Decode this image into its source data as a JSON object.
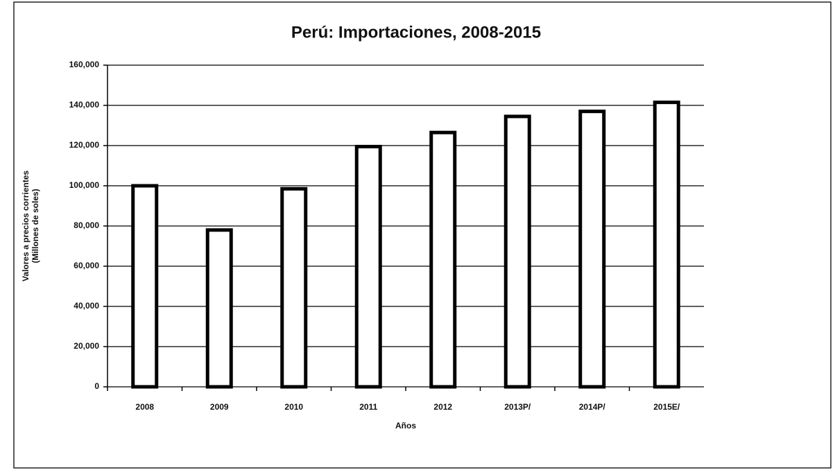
{
  "chart_data": {
    "type": "bar",
    "title": "Perú: Importaciones, 2008-2015",
    "x_label": "Años",
    "y_label": [
      "Valores a precios corrientes",
      "(Millones de soles)"
    ],
    "categories": [
      "2008",
      "2009",
      "2010",
      "2011",
      "2012",
      "2013P/",
      "2014P/",
      "2015E/"
    ],
    "values": [
      100000,
      78000,
      98500,
      119500,
      126500,
      134500,
      137000,
      141500
    ],
    "color": "#ffffff",
    "edge_color": "#000000",
    "ylim": [
      0,
      160000
    ],
    "yticks": [
      0,
      {
        "value": 20000,
        "label": "20,000"
      },
      {
        "value": 40000,
        "label": "40,000"
      },
      {
        "value": 60000,
        "label": "60,000"
      },
      {
        "value": 80000,
        "label": "80,000"
      },
      {
        "value": 100000,
        "label": "100,000"
      },
      {
        "value": 120000,
        "label": "120,000"
      },
      {
        "value": 140000,
        "label": "140,000"
      },
      {
        "value": 160000,
        "label": "160,000"
      }
    ],
    "grid": true
  }
}
